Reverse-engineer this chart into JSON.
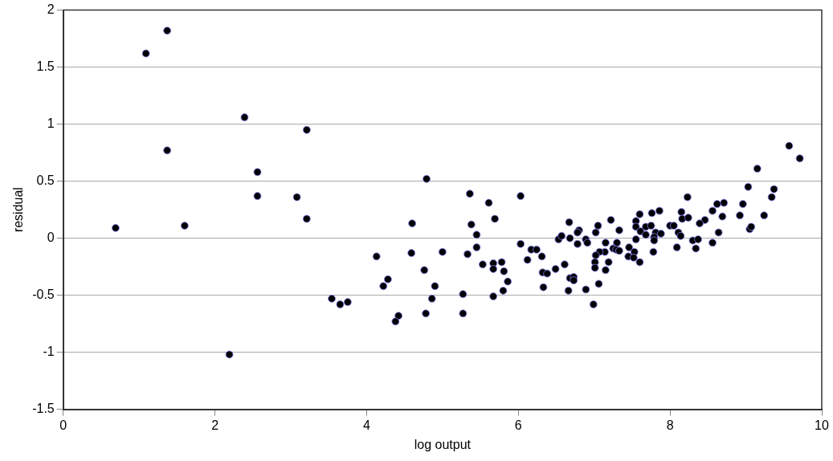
{
  "chart_data": {
    "type": "scatter",
    "xlabel": "log output",
    "ylabel": "residual",
    "xlim": [
      0,
      10
    ],
    "xticks": [
      0,
      2,
      4,
      6,
      8,
      10
    ],
    "ylim": [
      -1.5,
      2
    ],
    "yticks": [
      -1.5,
      -1,
      -0.5,
      0,
      0.5,
      1,
      1.5,
      2
    ],
    "grid": "y",
    "marker": "circle",
    "legend": false,
    "series": [
      {
        "color": "#000000",
        "x": [
          1.37,
          1.09,
          2.39,
          3.21,
          1.37,
          2.56,
          2.56,
          3.08,
          3.21,
          0.69,
          1.6,
          4.79,
          4.6,
          4.13,
          4.59,
          2.19,
          3.54,
          3.65,
          3.75,
          4.76,
          4.28,
          4.22,
          4.9,
          4.86,
          4.42,
          4.38,
          4.78,
          5.0,
          5.36,
          5.61,
          5.69,
          5.38,
          5.45,
          5.45,
          5.33,
          5.53,
          5.67,
          5.78,
          5.67,
          5.81,
          5.86,
          5.8,
          5.67,
          5.27,
          5.27,
          6.03,
          6.03,
          6.12,
          6.17,
          6.24,
          6.31,
          6.32,
          6.38,
          6.33,
          6.49,
          6.61,
          6.53,
          6.57,
          6.67,
          6.68,
          6.78,
          6.8,
          6.78,
          6.89,
          6.91,
          6.68,
          6.73,
          6.73,
          6.66,
          6.89,
          7.05,
          7.02,
          7.22,
          7.33,
          7.15,
          7.3,
          7.25,
          7.29,
          7.14,
          7.07,
          7.02,
          7.01,
          7.01,
          7.19,
          7.15,
          7.06,
          6.99,
          9.57,
          9.71,
          9.15,
          9.03,
          9.37,
          9.34,
          8.23,
          8.96,
          8.71,
          8.62,
          8.56,
          8.92,
          9.24,
          8.69,
          8.46,
          8.39,
          8.15,
          8.16,
          8.24,
          7.86,
          7.76,
          7.6,
          7.55,
          7.55,
          7.68,
          7.75,
          8.0,
          8.05,
          7.61,
          7.68,
          7.81,
          7.88,
          7.79,
          8.11,
          8.14,
          7.55,
          7.79,
          8.64,
          9.05,
          9.07,
          8.3,
          8.37,
          8.56,
          8.34,
          8.09,
          7.78,
          7.33,
          7.46,
          7.53,
          7.45,
          7.52,
          7.6
        ],
        "values": [
          1.82,
          1.62,
          1.06,
          0.95,
          0.77,
          0.58,
          0.37,
          0.36,
          0.17,
          0.09,
          0.11,
          0.52,
          0.13,
          -0.16,
          -0.13,
          -1.02,
          -0.53,
          -0.58,
          -0.56,
          -0.28,
          -0.36,
          -0.42,
          -0.42,
          -0.53,
          -0.68,
          -0.73,
          -0.66,
          -0.12,
          0.39,
          0.31,
          0.17,
          0.12,
          0.03,
          -0.08,
          -0.14,
          -0.23,
          -0.22,
          -0.21,
          -0.27,
          -0.29,
          -0.38,
          -0.46,
          -0.51,
          -0.49,
          -0.66,
          0.37,
          -0.05,
          -0.19,
          -0.1,
          -0.1,
          -0.16,
          -0.3,
          -0.31,
          -0.43,
          -0.27,
          -0.23,
          -0.01,
          0.02,
          0.14,
          0.0,
          -0.05,
          0.07,
          0.05,
          -0.01,
          -0.04,
          -0.35,
          -0.34,
          -0.37,
          -0.46,
          -0.45,
          0.11,
          0.05,
          0.16,
          0.07,
          -0.04,
          -0.04,
          -0.09,
          -0.1,
          -0.12,
          -0.12,
          -0.15,
          -0.21,
          -0.26,
          -0.21,
          -0.28,
          -0.4,
          -0.58,
          0.81,
          0.7,
          0.61,
          0.45,
          0.43,
          0.36,
          0.36,
          0.3,
          0.31,
          0.3,
          0.24,
          0.2,
          0.2,
          0.19,
          0.16,
          0.13,
          0.23,
          0.17,
          0.18,
          0.24,
          0.22,
          0.21,
          0.15,
          0.1,
          0.1,
          0.11,
          0.11,
          0.11,
          0.06,
          0.03,
          0.05,
          0.04,
          0.01,
          0.05,
          0.02,
          -0.01,
          -0.02,
          0.05,
          0.08,
          0.1,
          -0.02,
          -0.01,
          -0.04,
          -0.09,
          -0.08,
          -0.12,
          -0.11,
          -0.08,
          -0.12,
          -0.16,
          -0.17,
          -0.21
        ]
      }
    ]
  }
}
